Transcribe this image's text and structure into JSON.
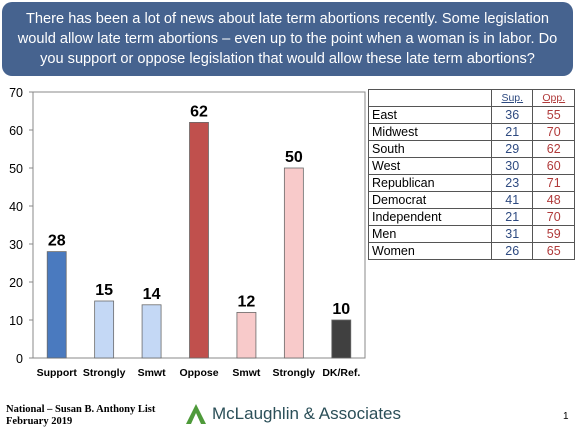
{
  "question": "There has been a lot of news about late term abortions recently. Some legislation would allow late term abortions – even up to the point when a woman is in labor. Do you support or oppose legislation that would allow these late term abortions?",
  "chart_data": {
    "type": "bar",
    "categories": [
      "Support",
      "Strongly",
      "Smwt",
      "Oppose",
      "Smwt",
      "Strongly",
      "DK/Ref."
    ],
    "values": [
      28,
      15,
      14,
      62,
      12,
      50,
      10
    ],
    "colors": [
      "#4a7abf",
      "#c4d8f5",
      "#c4d8f5",
      "#c0504d",
      "#f8caca",
      "#f8caca",
      "#404040"
    ],
    "ylim": [
      0,
      70
    ],
    "yticks": [
      0,
      10,
      20,
      30,
      40,
      50,
      60,
      70
    ],
    "grid": false
  },
  "table": {
    "headers": [
      "",
      "Sup.",
      "Opp."
    ],
    "rows": [
      {
        "label": "East",
        "sup": "36",
        "opp": "55"
      },
      {
        "label": "Midwest",
        "sup": "21",
        "opp": "70"
      },
      {
        "label": "South",
        "sup": "29",
        "opp": "62"
      },
      {
        "label": "West",
        "sup": "30",
        "opp": "60"
      },
      {
        "label": "Republican",
        "sup": "23",
        "opp": "71"
      },
      {
        "label": "Democrat",
        "sup": "41",
        "opp": "48"
      },
      {
        "label": "Independent",
        "sup": "21",
        "opp": "70"
      },
      {
        "label": "Men",
        "sup": "31",
        "opp": "59"
      },
      {
        "label": "Women",
        "sup": "26",
        "opp": "65"
      }
    ]
  },
  "footer": {
    "line1": "National – Susan B. Anthony List",
    "line2": "February 2019",
    "logo_text": "McLaughlin & Associates",
    "page": "1"
  }
}
